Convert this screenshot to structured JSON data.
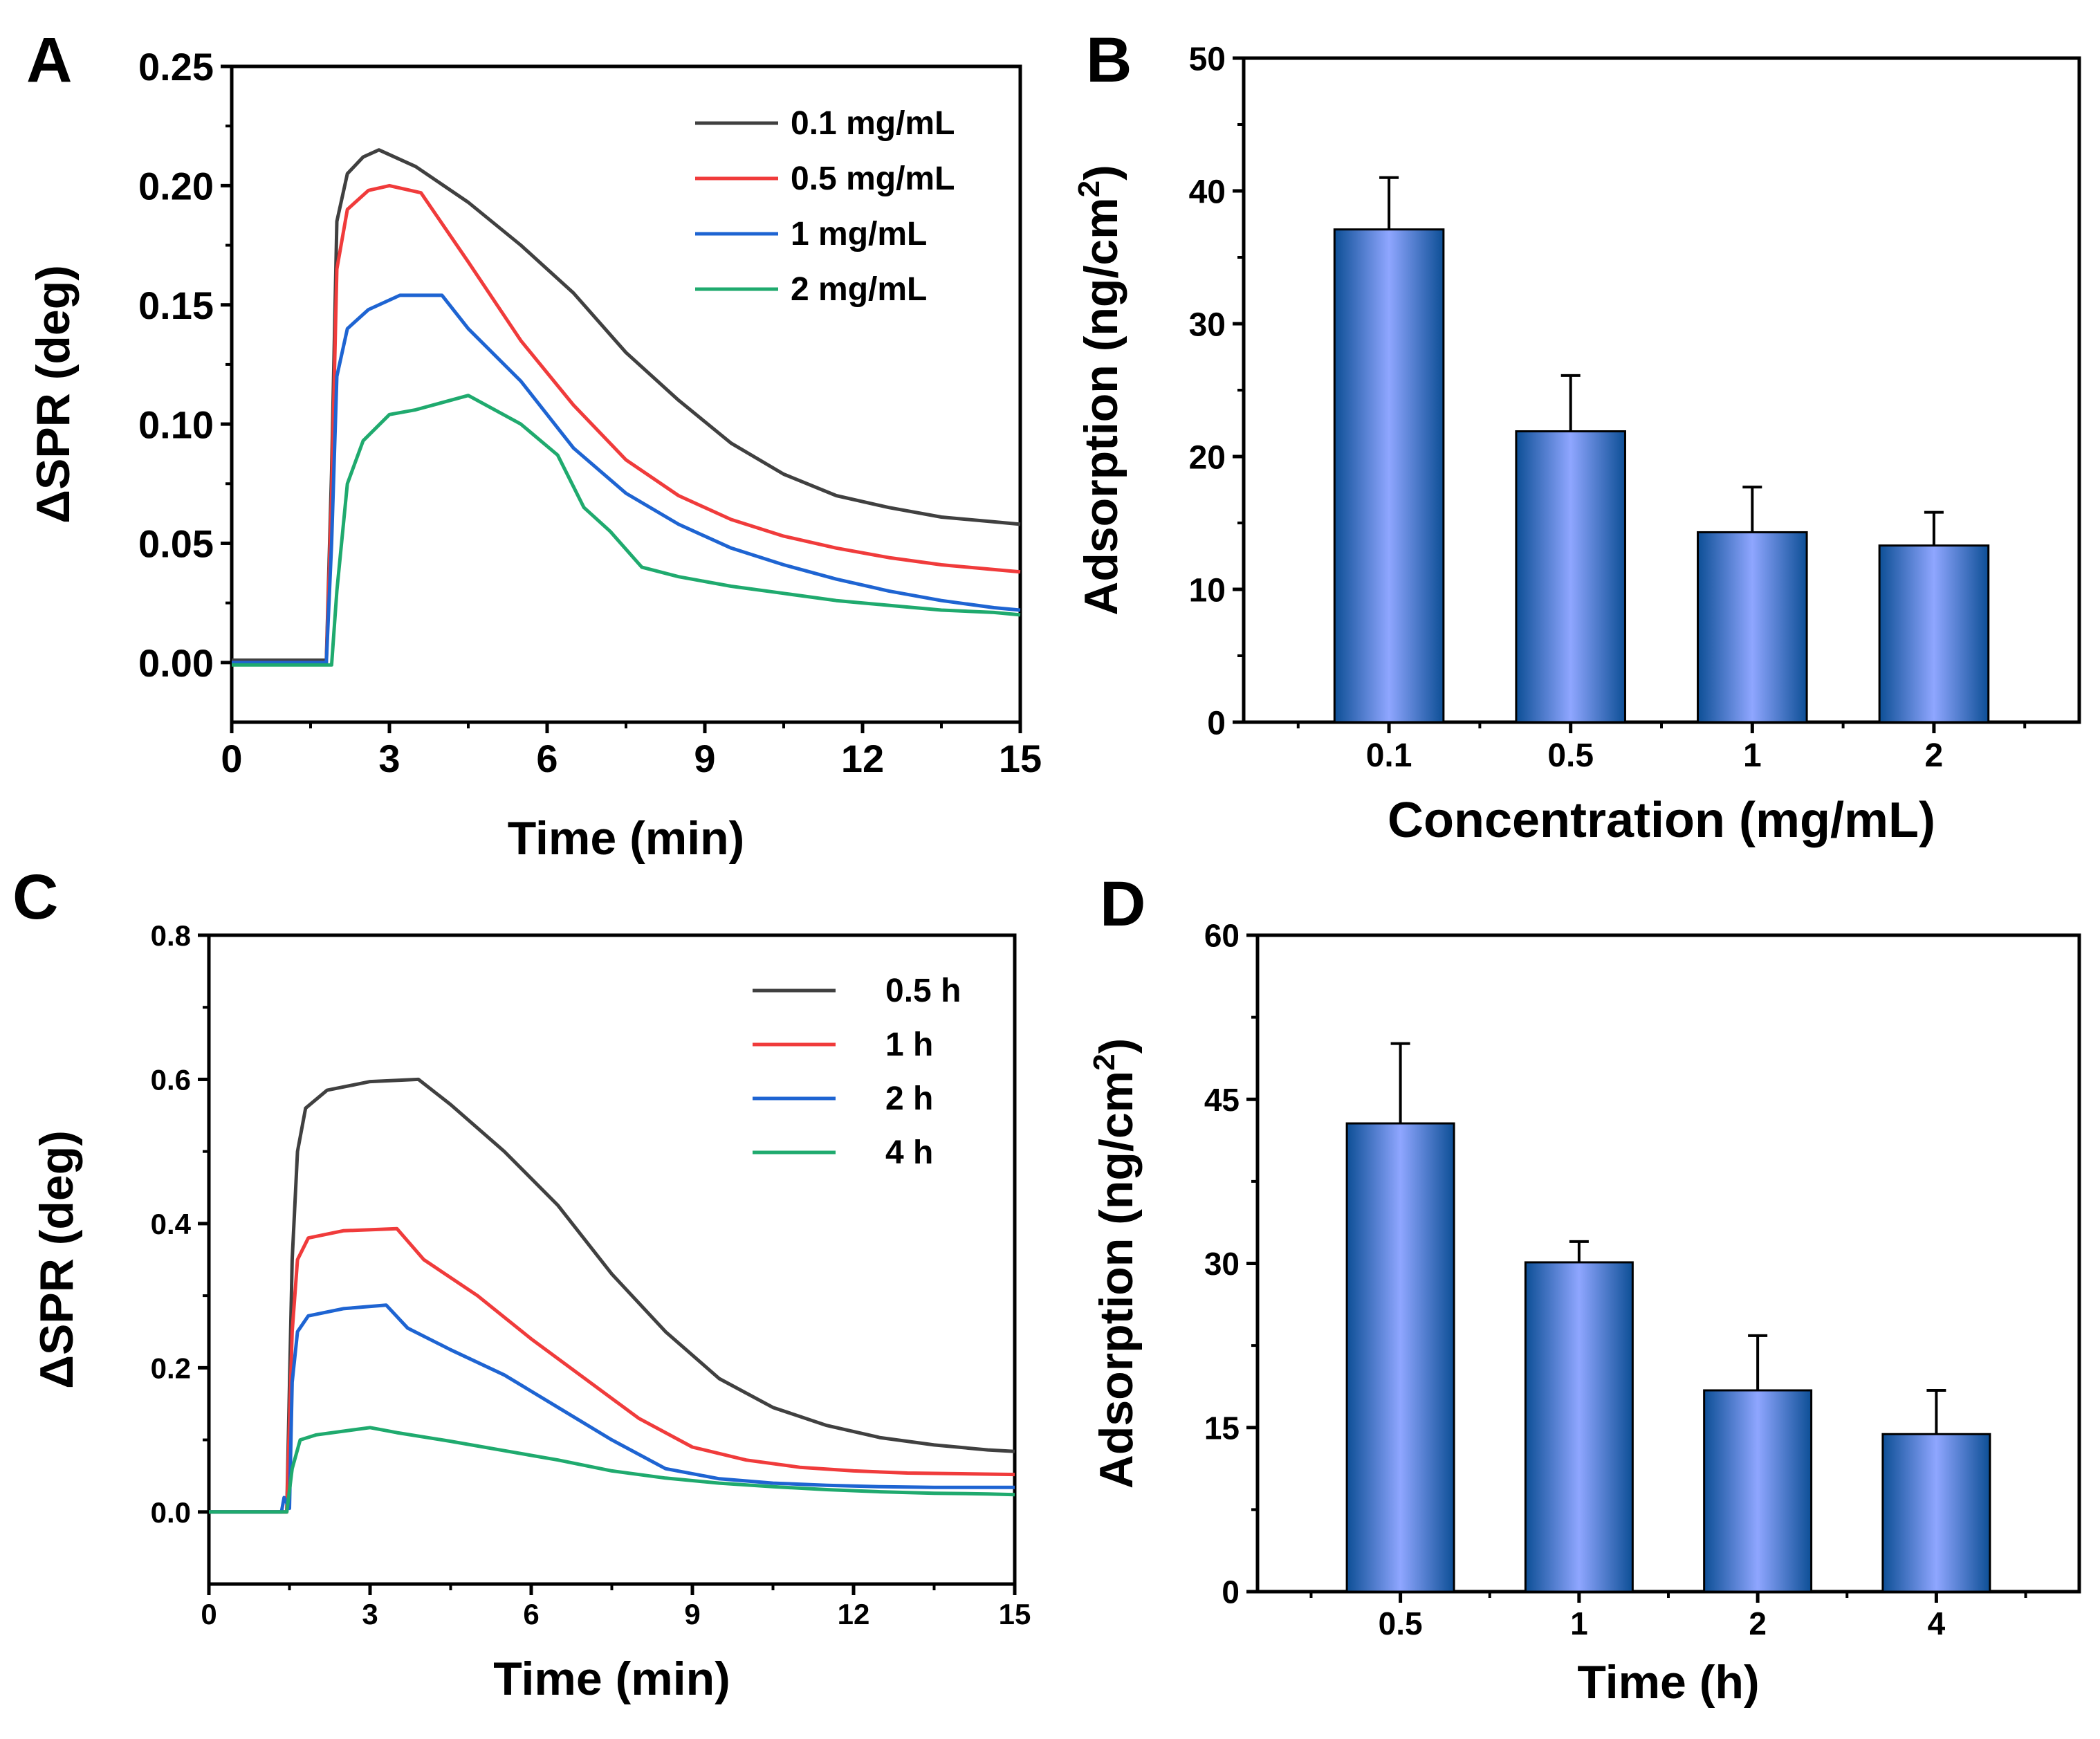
{
  "chart_data": [
    {
      "panel": "A",
      "type": "line",
      "xlabel": "Time (min)",
      "ylabel": "ΔSPR (deg)",
      "xlim": [
        0,
        15
      ],
      "ylim": [
        -0.025,
        0.25
      ],
      "xticks": [
        "0",
        "3",
        "6",
        "9",
        "12",
        "15"
      ],
      "yticks": [
        "0.00",
        "0.05",
        "0.10",
        "0.15",
        "0.20",
        "0.25"
      ],
      "legend_position": "top-right",
      "series": [
        {
          "name": "0.1 mg/mL",
          "color": "#404040",
          "points": [
            [
              0,
              0.001
            ],
            [
              1.8,
              0.001
            ],
            [
              1.9,
              0.08
            ],
            [
              2.0,
              0.185
            ],
            [
              2.2,
              0.205
            ],
            [
              2.5,
              0.212
            ],
            [
              2.8,
              0.215
            ],
            [
              3.5,
              0.208
            ],
            [
              4.5,
              0.193
            ],
            [
              5.5,
              0.175
            ],
            [
              6.5,
              0.155
            ],
            [
              7.5,
              0.13
            ],
            [
              8.5,
              0.11
            ],
            [
              9.5,
              0.092
            ],
            [
              10.5,
              0.079
            ],
            [
              11.5,
              0.07
            ],
            [
              12.5,
              0.065
            ],
            [
              13.5,
              0.061
            ],
            [
              14.5,
              0.059
            ],
            [
              15,
              0.058
            ]
          ]
        },
        {
          "name": "0.5 mg/mL",
          "color": "#f03b3b",
          "points": [
            [
              0,
              0
            ],
            [
              1.8,
              0
            ],
            [
              1.9,
              0.07
            ],
            [
              2.0,
              0.165
            ],
            [
              2.2,
              0.19
            ],
            [
              2.6,
              0.198
            ],
            [
              3.0,
              0.2
            ],
            [
              3.6,
              0.197
            ],
            [
              4.5,
              0.168
            ],
            [
              5.5,
              0.135
            ],
            [
              6.5,
              0.108
            ],
            [
              7.5,
              0.085
            ],
            [
              8.5,
              0.07
            ],
            [
              9.5,
              0.06
            ],
            [
              10.5,
              0.053
            ],
            [
              11.5,
              0.048
            ],
            [
              12.5,
              0.044
            ],
            [
              13.5,
              0.041
            ],
            [
              14.5,
              0.039
            ],
            [
              15,
              0.038
            ]
          ]
        },
        {
          "name": "1 mg/mL",
          "color": "#1e64d2",
          "points": [
            [
              0,
              0
            ],
            [
              1.8,
              0
            ],
            [
              1.9,
              0.05
            ],
            [
              2.0,
              0.12
            ],
            [
              2.2,
              0.14
            ],
            [
              2.6,
              0.148
            ],
            [
              3.2,
              0.154
            ],
            [
              4.0,
              0.154
            ],
            [
              4.5,
              0.14
            ],
            [
              5.5,
              0.118
            ],
            [
              6.5,
              0.09
            ],
            [
              7.5,
              0.071
            ],
            [
              8.5,
              0.058
            ],
            [
              9.5,
              0.048
            ],
            [
              10.5,
              0.041
            ],
            [
              11.5,
              0.035
            ],
            [
              12.5,
              0.03
            ],
            [
              13.5,
              0.026
            ],
            [
              14.5,
              0.023
            ],
            [
              15,
              0.022
            ]
          ]
        },
        {
          "name": "2 mg/mL",
          "color": "#1faa6e",
          "points": [
            [
              0,
              -0.001
            ],
            [
              1.9,
              -0.001
            ],
            [
              2.0,
              0.03
            ],
            [
              2.2,
              0.075
            ],
            [
              2.5,
              0.093
            ],
            [
              3.0,
              0.104
            ],
            [
              3.5,
              0.106
            ],
            [
              4.5,
              0.112
            ],
            [
              5.5,
              0.1
            ],
            [
              6.2,
              0.087
            ],
            [
              6.7,
              0.065
            ],
            [
              7.2,
              0.055
            ],
            [
              7.8,
              0.04
            ],
            [
              8.5,
              0.036
            ],
            [
              9.5,
              0.032
            ],
            [
              10.5,
              0.029
            ],
            [
              11.5,
              0.026
            ],
            [
              12.5,
              0.024
            ],
            [
              13.5,
              0.022
            ],
            [
              14.5,
              0.021
            ],
            [
              15,
              0.02
            ]
          ]
        }
      ]
    },
    {
      "panel": "B",
      "type": "bar",
      "xlabel": "Concentration (mg/mL)",
      "ylabel_main": "Adsorption (ng/cm",
      "ylabel_sup": "2",
      "ylabel_close": ")",
      "ylim": [
        0,
        50
      ],
      "yticks": [
        "0",
        "10",
        "20",
        "30",
        "40",
        "50"
      ],
      "categories": [
        "0.1",
        "0.5",
        "1",
        "2"
      ],
      "values": [
        37.1,
        21.9,
        14.3,
        13.3
      ],
      "errors": [
        3.9,
        4.2,
        3.4,
        2.5
      ],
      "bar_colors": [
        "#0d4f96",
        "#8fa6ff"
      ]
    },
    {
      "panel": "C",
      "type": "line",
      "xlabel": "Time (min)",
      "ylabel": "ΔSPR (deg)",
      "xlim": [
        0,
        15
      ],
      "ylim": [
        -0.1,
        0.8
      ],
      "xticks": [
        "0",
        "3",
        "6",
        "9",
        "12",
        "15"
      ],
      "yticks": [
        "0.0",
        "0.2",
        "0.4",
        "0.6",
        "0.8"
      ],
      "legend_position": "top-right",
      "series": [
        {
          "name": "0.5 h",
          "color": "#404040",
          "points": [
            [
              0,
              0
            ],
            [
              1.3,
              0
            ],
            [
              1.45,
              0
            ],
            [
              1.55,
              0.35
            ],
            [
              1.65,
              0.5
            ],
            [
              1.8,
              0.56
            ],
            [
              2.2,
              0.585
            ],
            [
              3.0,
              0.597
            ],
            [
              3.9,
              0.6
            ],
            [
              4.5,
              0.565
            ],
            [
              5.5,
              0.5
            ],
            [
              6.5,
              0.425
            ],
            [
              7.5,
              0.33
            ],
            [
              8.5,
              0.25
            ],
            [
              9.5,
              0.185
            ],
            [
              10.5,
              0.145
            ],
            [
              11.5,
              0.12
            ],
            [
              12.5,
              0.103
            ],
            [
              13.5,
              0.093
            ],
            [
              14.5,
              0.086
            ],
            [
              15,
              0.084
            ]
          ]
        },
        {
          "name": "1 h",
          "color": "#f03b3b",
          "points": [
            [
              0,
              0
            ],
            [
              1.45,
              0
            ],
            [
              1.55,
              0.25
            ],
            [
              1.65,
              0.35
            ],
            [
              1.85,
              0.38
            ],
            [
              2.5,
              0.39
            ],
            [
              3.5,
              0.393
            ],
            [
              4.0,
              0.35
            ],
            [
              5.0,
              0.3
            ],
            [
              6.0,
              0.24
            ],
            [
              7.0,
              0.185
            ],
            [
              8.0,
              0.13
            ],
            [
              9.0,
              0.09
            ],
            [
              10,
              0.072
            ],
            [
              11,
              0.062
            ],
            [
              12,
              0.057
            ],
            [
              13,
              0.054
            ],
            [
              14,
              0.053
            ],
            [
              15,
              0.052
            ]
          ]
        },
        {
          "name": "2 h",
          "color": "#1e64d2",
          "points": [
            [
              0,
              0
            ],
            [
              1.35,
              0
            ],
            [
              1.4,
              0.02
            ],
            [
              1.5,
              0.005
            ],
            [
              1.55,
              0.18
            ],
            [
              1.65,
              0.25
            ],
            [
              1.85,
              0.272
            ],
            [
              2.5,
              0.282
            ],
            [
              3.3,
              0.287
            ],
            [
              3.7,
              0.255
            ],
            [
              4.5,
              0.225
            ],
            [
              5.5,
              0.19
            ],
            [
              6.5,
              0.145
            ],
            [
              7.5,
              0.1
            ],
            [
              8.5,
              0.06
            ],
            [
              9.5,
              0.046
            ],
            [
              10.5,
              0.04
            ],
            [
              11.5,
              0.037
            ],
            [
              12.5,
              0.035
            ],
            [
              13.5,
              0.034
            ],
            [
              15,
              0.034
            ]
          ]
        },
        {
          "name": "4 h",
          "color": "#1faa6e",
          "points": [
            [
              0,
              0
            ],
            [
              1.45,
              0
            ],
            [
              1.55,
              0.06
            ],
            [
              1.7,
              0.1
            ],
            [
              2.0,
              0.107
            ],
            [
              2.6,
              0.113
            ],
            [
              3.0,
              0.117
            ],
            [
              3.5,
              0.11
            ],
            [
              4.5,
              0.098
            ],
            [
              5.5,
              0.085
            ],
            [
              6.5,
              0.072
            ],
            [
              7.5,
              0.057
            ],
            [
              8.5,
              0.047
            ],
            [
              9.5,
              0.04
            ],
            [
              10.5,
              0.035
            ],
            [
              11.5,
              0.031
            ],
            [
              12.5,
              0.028
            ],
            [
              13.5,
              0.026
            ],
            [
              14.5,
              0.025
            ],
            [
              15,
              0.024
            ]
          ]
        }
      ]
    },
    {
      "panel": "D",
      "type": "bar",
      "xlabel": "Time (h)",
      "ylabel_main": "Adsorption (ng/cm",
      "ylabel_sup": "2",
      "ylabel_close": ")",
      "ylim": [
        0,
        60
      ],
      "yticks": [
        "0",
        "15",
        "30",
        "45",
        "60"
      ],
      "categories": [
        "0.5",
        "1",
        "2",
        "4"
      ],
      "values": [
        42.8,
        30.1,
        18.4,
        14.4
      ],
      "errors": [
        7.3,
        1.9,
        5.0,
        4.0
      ],
      "bar_colors": [
        "#0d4f96",
        "#8fa6ff"
      ]
    }
  ]
}
